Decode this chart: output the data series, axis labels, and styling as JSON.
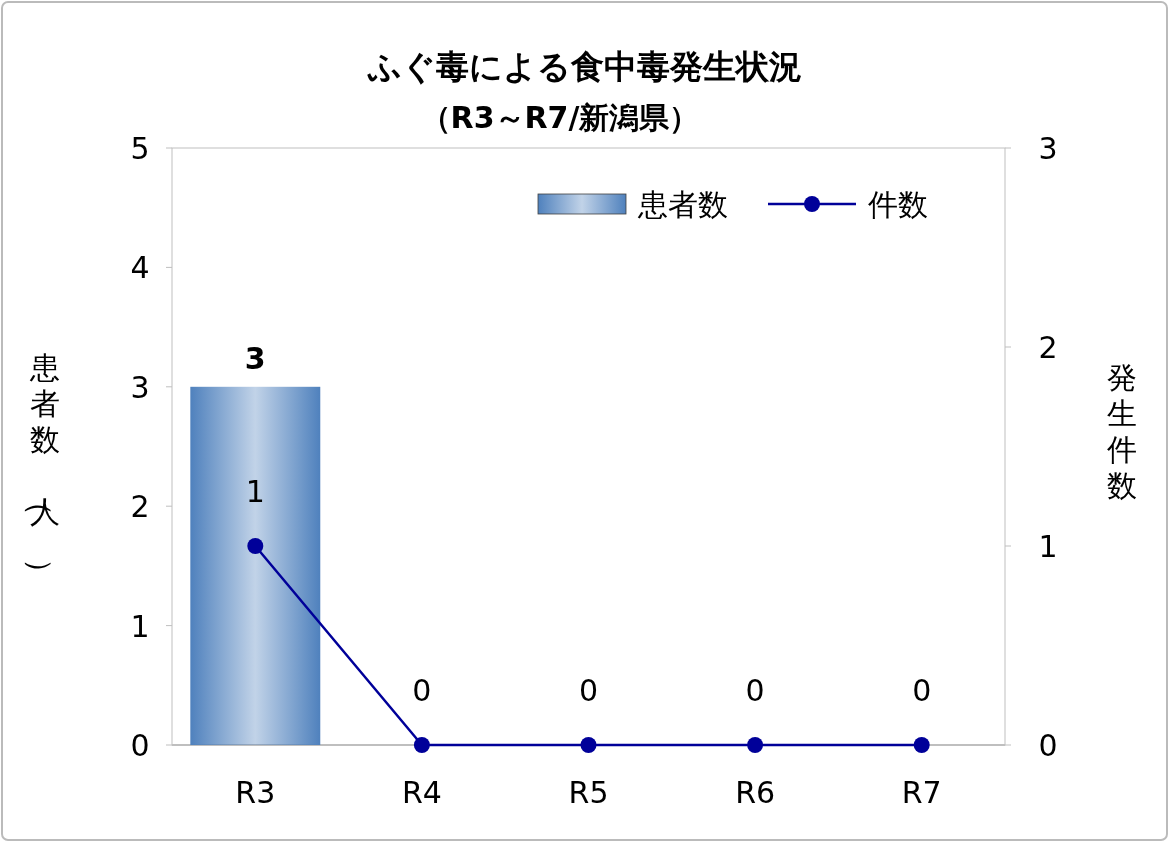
{
  "chart_data": {
    "type": "bar",
    "title": "ふぐ毒による食中毒発生状況",
    "subtitle": "（R3～R7/新潟県）",
    "ylabel": "患者数（人）",
    "y2label": "発生件数",
    "categories": [
      "R3",
      "R4",
      "R5",
      "R6",
      "R7"
    ],
    "series": [
      {
        "name": "患者数",
        "color": "#4f81bd",
        "values": [
          3,
          0,
          0,
          0,
          0
        ],
        "value_labels": [
          "3",
          null,
          null,
          null,
          null
        ]
      },
      {
        "name": "件数",
        "type": "line",
        "axis": "y2",
        "color": "#000099",
        "marker": "circle",
        "values": [
          1,
          0,
          0,
          0,
          0
        ],
        "value_labels": [
          "1",
          "0",
          "0",
          "0",
          "0"
        ]
      }
    ],
    "ylim": [
      0,
      5
    ],
    "yticks": [
      0,
      1,
      2,
      3,
      4,
      5
    ],
    "y2lim": [
      0,
      3
    ],
    "y2ticks": [
      0,
      1,
      2,
      3
    ],
    "legend": "top right",
    "grid": false
  }
}
